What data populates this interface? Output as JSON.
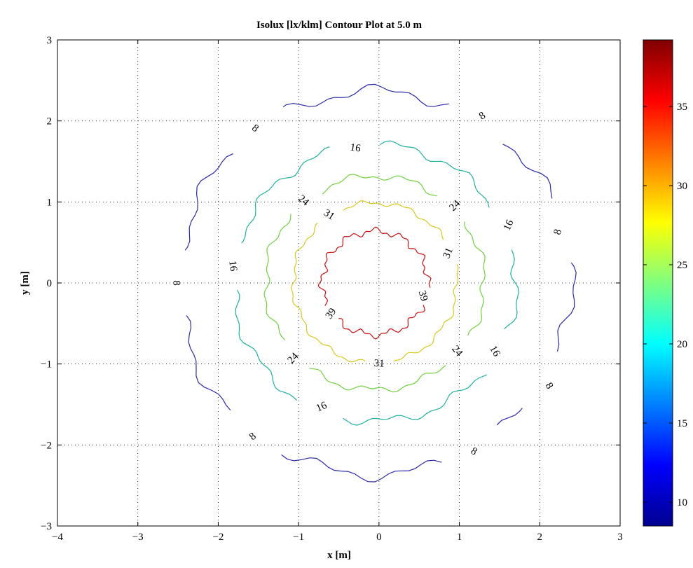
{
  "chart_data": {
    "type": "contour",
    "title": "Isolux [lx/klm] Contour Plot at 5.0 m",
    "xlabel": "x [m]",
    "ylabel": "y [m]",
    "xlim": [
      -4,
      3
    ],
    "ylim": [
      -3,
      3
    ],
    "x_ticks": [
      -4,
      -3,
      -2,
      -1,
      0,
      1,
      2,
      3
    ],
    "y_ticks": [
      -3,
      -2,
      -1,
      0,
      1,
      2,
      3
    ],
    "x_tick_labels": [
      "−4",
      "−3",
      "−2",
      "−1",
      "0",
      "1",
      "2",
      "3"
    ],
    "y_tick_labels": [
      "−3",
      "−2",
      "−1",
      "0",
      "1",
      "2",
      "3"
    ],
    "grid": true,
    "colormap": "jet",
    "colorbar": {
      "range": [
        8.5,
        39.2
      ],
      "ticks": [
        10,
        15,
        20,
        25,
        30,
        35
      ],
      "tick_labels": [
        "10",
        "15",
        "20",
        "25",
        "30",
        "35"
      ]
    },
    "center": [
      -0.05,
      0.0
    ],
    "levels": [
      {
        "value": 8,
        "label": "8",
        "color": "#2a2aa6",
        "radius": 2.44,
        "label_angles": [
          58,
          127,
          180,
          232,
          300,
          16,
          329
        ]
      },
      {
        "value": 16,
        "label": "16",
        "color": "#20b0a0",
        "radius": 1.76,
        "label_angles": [
          98,
          173,
          247,
          330,
          24
        ]
      },
      {
        "value": 24,
        "label": "24",
        "color": "#70d040",
        "radius": 1.36,
        "label_angles": [
          130,
          223,
          320,
          45
        ]
      },
      {
        "value": 31,
        "label": "31",
        "color": "#d8c820",
        "radius": 1.02,
        "label_angles": [
          123,
          23,
          273
        ]
      },
      {
        "value": 39,
        "label": "39",
        "color": "#c81010",
        "radius": 0.66,
        "label_angles": [
          345,
          215
        ]
      }
    ]
  }
}
